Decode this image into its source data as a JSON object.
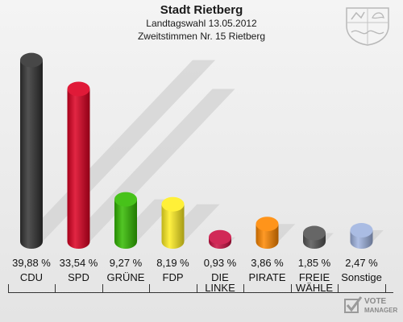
{
  "header": {
    "title": "Stadt Rietberg",
    "subtitle": "Landtagswahl 13.05.2012",
    "subtitle2": "Zweitstimmen Nr. 15 Rietberg"
  },
  "chart_data": {
    "type": "bar",
    "title": "Stadt Rietberg",
    "categories": [
      "CDU",
      "SPD",
      "GRÜNE",
      "FDP",
      "DIE LINKE",
      "PIRATE",
      "FREIE WÄHLE",
      "Sonstige"
    ],
    "category_lines": [
      [
        "CDU"
      ],
      [
        "SPD"
      ],
      [
        "GRÜNE"
      ],
      [
        "FDP"
      ],
      [
        "DIE",
        "LINKE"
      ],
      [
        "PIRATE"
      ],
      [
        "FREIE",
        "WÄHLE"
      ],
      [
        "Sonstige"
      ]
    ],
    "values": [
      39.88,
      33.54,
      9.27,
      8.19,
      0.93,
      3.86,
      1.85,
      2.47
    ],
    "value_labels": [
      "39,88 %",
      "33,54 %",
      "9,27 %",
      "8,19 %",
      "0,93 %",
      "3,86 %",
      "1,85 %",
      "2,47 %"
    ],
    "colors": [
      "#333333",
      "#dd0022",
      "#33bb00",
      "#ffee22",
      "#cc1144",
      "#ff8800",
      "#555555",
      "#a0b4e0"
    ],
    "unit": "%",
    "ylim": [
      0,
      40
    ],
    "grid": false,
    "legend": "none"
  },
  "brand": {
    "logo_line1": "VOTE",
    "logo_line2": "MANAGER"
  }
}
